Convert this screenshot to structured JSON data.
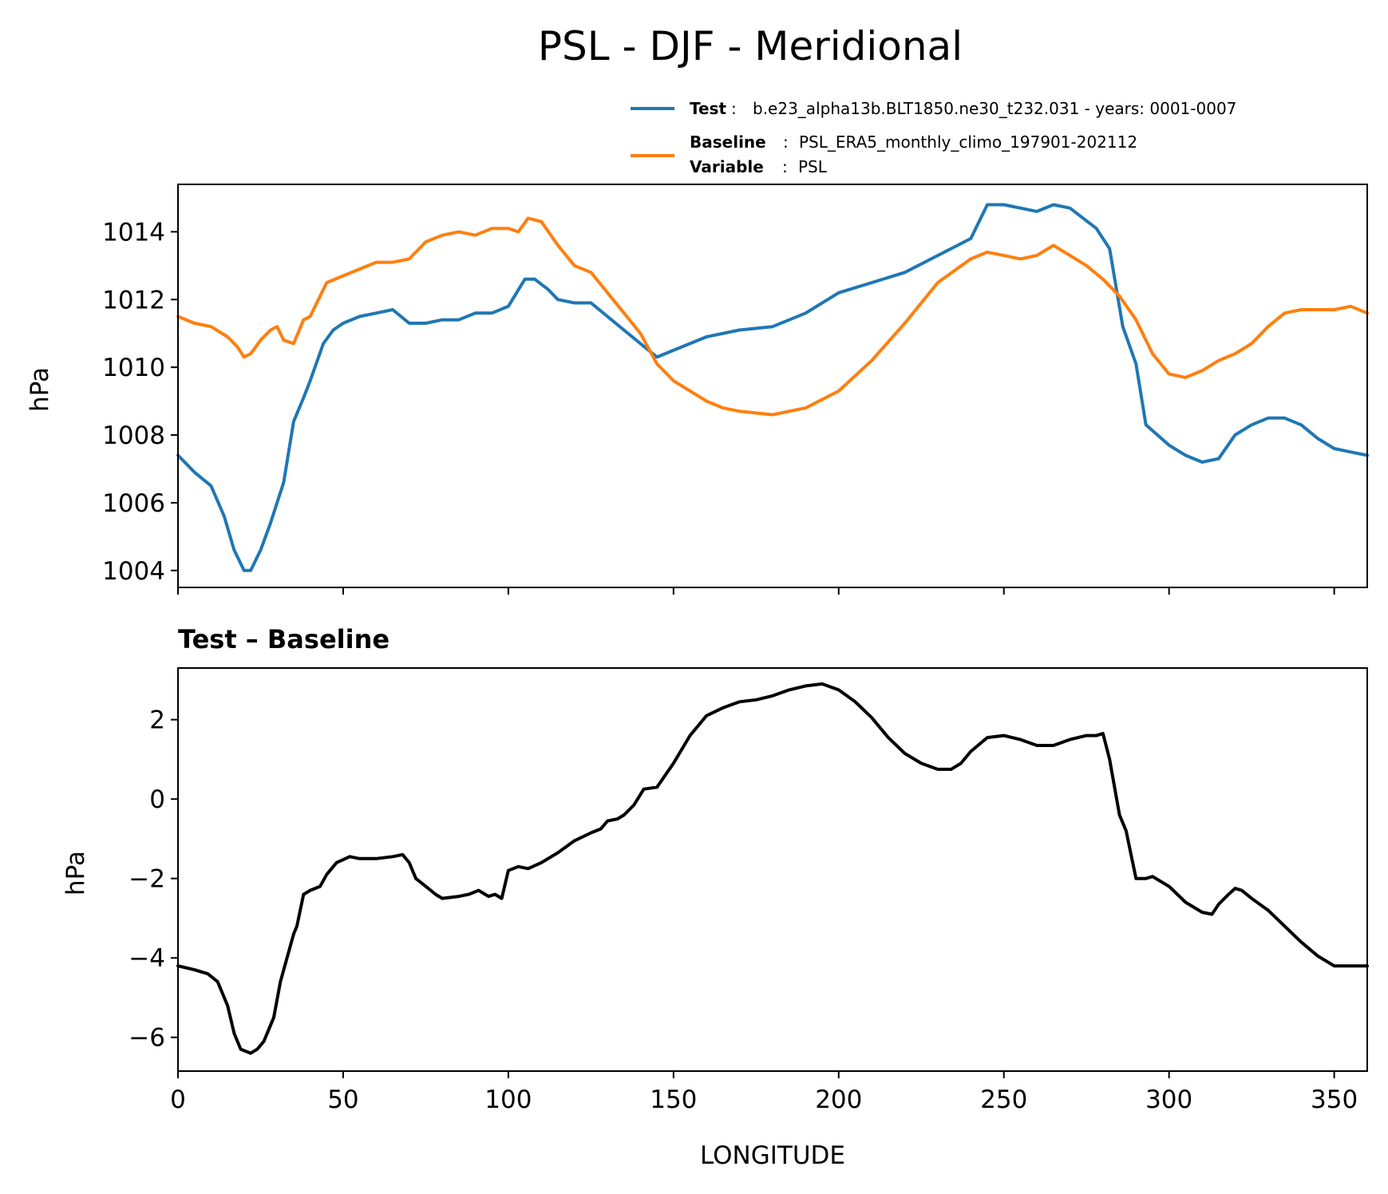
{
  "title": "PSL - DJF - Meridional",
  "legend": {
    "test_key": "Test",
    "test_value": "b.e23_alpha13b.BLT1850.ne30_t232.031 - years: 0001-0007",
    "baseline_key": "Baseline",
    "baseline_value": "PSL_ERA5_monthly_climo_197901-202112",
    "variable_key": "Variable",
    "variable_value": "PSL",
    "separator": ":"
  },
  "colors": {
    "test": "#1f77b4",
    "baseline": "#ff7f0e",
    "diff": "#000000"
  },
  "chart_data": [
    {
      "type": "line",
      "title": "PSL - DJF - Meridional",
      "ylabel": "hPa",
      "xlabel": "",
      "xlim": [
        0,
        360
      ],
      "ylim": [
        1003.5,
        1015.4
      ],
      "xticks": [
        0,
        50,
        100,
        150,
        200,
        250,
        300,
        350
      ],
      "yticks": [
        1004,
        1006,
        1008,
        1010,
        1012,
        1014
      ],
      "legend_position": "top-right, above plot",
      "series": [
        {
          "name": "Test",
          "x": [
            0,
            5,
            10,
            14,
            17,
            20,
            22,
            25,
            28,
            32,
            35,
            38,
            40,
            44,
            47,
            50,
            55,
            60,
            65,
            70,
            75,
            80,
            85,
            90,
            95,
            100,
            105,
            108,
            112,
            115,
            120,
            125,
            130,
            140,
            145,
            150,
            160,
            170,
            180,
            190,
            200,
            210,
            220,
            230,
            240,
            245,
            250,
            255,
            260,
            265,
            270,
            278,
            282,
            286,
            290,
            293,
            300,
            305,
            310,
            315,
            320,
            325,
            330,
            335,
            340,
            345,
            350,
            355,
            360
          ],
          "y": [
            1007.4,
            1006.9,
            1006.5,
            1005.6,
            1004.6,
            1004.0,
            1004.0,
            1004.6,
            1005.4,
            1006.6,
            1008.4,
            1009.1,
            1009.6,
            1010.7,
            1011.1,
            1011.3,
            1011.5,
            1011.6,
            1011.7,
            1011.3,
            1011.3,
            1011.4,
            1011.4,
            1011.6,
            1011.6,
            1011.8,
            1012.6,
            1012.6,
            1012.3,
            1012.0,
            1011.9,
            1011.9,
            1011.5,
            1010.7,
            1010.3,
            1010.5,
            1010.9,
            1011.1,
            1011.2,
            1011.6,
            1012.2,
            1012.5,
            1012.8,
            1013.3,
            1013.8,
            1014.8,
            1014.8,
            1014.7,
            1014.6,
            1014.8,
            1014.7,
            1014.1,
            1013.5,
            1011.2,
            1010.1,
            1008.3,
            1007.7,
            1007.4,
            1007.2,
            1007.3,
            1008.0,
            1008.3,
            1008.5,
            1008.5,
            1008.3,
            1007.9,
            1007.6,
            1007.5,
            1007.4
          ]
        },
        {
          "name": "Baseline",
          "x": [
            0,
            5,
            10,
            15,
            18,
            20,
            22,
            25,
            28,
            30,
            32,
            35,
            38,
            40,
            45,
            50,
            55,
            60,
            65,
            70,
            75,
            80,
            85,
            90,
            95,
            100,
            103,
            106,
            110,
            115,
            120,
            125,
            130,
            135,
            140,
            145,
            150,
            160,
            165,
            170,
            180,
            190,
            200,
            210,
            220,
            230,
            240,
            245,
            250,
            255,
            260,
            265,
            270,
            275,
            280,
            285,
            290,
            295,
            300,
            305,
            310,
            315,
            320,
            325,
            330,
            335,
            340,
            345,
            350,
            355,
            360
          ],
          "y": [
            1011.5,
            1011.3,
            1011.2,
            1010.9,
            1010.6,
            1010.3,
            1010.4,
            1010.8,
            1011.1,
            1011.2,
            1010.8,
            1010.7,
            1011.4,
            1011.5,
            1012.5,
            1012.7,
            1012.9,
            1013.1,
            1013.1,
            1013.2,
            1013.7,
            1013.9,
            1014.0,
            1013.9,
            1014.1,
            1014.1,
            1014.0,
            1014.4,
            1014.3,
            1013.6,
            1013.0,
            1012.8,
            1012.2,
            1011.6,
            1011.0,
            1010.1,
            1009.6,
            1009.0,
            1008.8,
            1008.7,
            1008.6,
            1008.8,
            1009.3,
            1010.2,
            1011.3,
            1012.5,
            1013.2,
            1013.4,
            1013.3,
            1013.2,
            1013.3,
            1013.6,
            1013.3,
            1013.0,
            1012.6,
            1012.1,
            1011.4,
            1010.4,
            1009.8,
            1009.7,
            1009.9,
            1010.2,
            1010.4,
            1010.7,
            1011.2,
            1011.6,
            1011.7,
            1011.7,
            1011.7,
            1011.8,
            1011.6
          ]
        }
      ]
    },
    {
      "type": "line",
      "title": "Test – Baseline",
      "ylabel": "hPa",
      "xlabel": "LONGITUDE",
      "xlim": [
        0,
        360
      ],
      "ylim": [
        -6.85,
        3.3
      ],
      "xticks": [
        0,
        50,
        100,
        150,
        200,
        250,
        300,
        350
      ],
      "yticks": [
        -6,
        -4,
        -2,
        0,
        2
      ],
      "series": [
        {
          "name": "Test – Baseline",
          "x": [
            0,
            5,
            9,
            12,
            15,
            17,
            19,
            22,
            24,
            26,
            29,
            31,
            33,
            35,
            36,
            38,
            40,
            43,
            45,
            48,
            52,
            55,
            60,
            65,
            68,
            70,
            72,
            75,
            78,
            80,
            85,
            88,
            91,
            94,
            96,
            98,
            100,
            103,
            106,
            110,
            115,
            120,
            125,
            128,
            130,
            133,
            135,
            138,
            141,
            145,
            150,
            155,
            160,
            165,
            170,
            175,
            180,
            185,
            190,
            195,
            200,
            205,
            210,
            215,
            220,
            225,
            230,
            234,
            237,
            240,
            245,
            250,
            255,
            260,
            265,
            270,
            275,
            278,
            280,
            282,
            285,
            287,
            288,
            290,
            293,
            295,
            297,
            300,
            305,
            310,
            313,
            315,
            318,
            320,
            322,
            325,
            330,
            335,
            340,
            345,
            350,
            355,
            360
          ],
          "y": [
            -4.2,
            -4.3,
            -4.4,
            -4.6,
            -5.2,
            -5.9,
            -6.3,
            -6.4,
            -6.3,
            -6.1,
            -5.5,
            -4.6,
            -4.0,
            -3.4,
            -3.2,
            -2.4,
            -2.3,
            -2.2,
            -1.9,
            -1.6,
            -1.45,
            -1.5,
            -1.5,
            -1.45,
            -1.4,
            -1.6,
            -2.0,
            -2.2,
            -2.4,
            -2.5,
            -2.45,
            -2.4,
            -2.3,
            -2.45,
            -2.4,
            -2.5,
            -1.8,
            -1.7,
            -1.75,
            -1.6,
            -1.35,
            -1.05,
            -0.85,
            -0.75,
            -0.55,
            -0.5,
            -0.4,
            -0.15,
            0.25,
            0.3,
            0.9,
            1.6,
            2.1,
            2.3,
            2.45,
            2.5,
            2.6,
            2.75,
            2.85,
            2.9,
            2.75,
            2.45,
            2.05,
            1.55,
            1.15,
            0.9,
            0.75,
            0.75,
            0.9,
            1.2,
            1.55,
            1.6,
            1.5,
            1.35,
            1.35,
            1.5,
            1.6,
            1.6,
            1.65,
            1.0,
            -0.4,
            -0.8,
            -1.2,
            -2.0,
            -2.0,
            -1.95,
            -2.05,
            -2.2,
            -2.6,
            -2.85,
            -2.9,
            -2.65,
            -2.4,
            -2.25,
            -2.3,
            -2.5,
            -2.8,
            -3.2,
            -3.6,
            -3.95,
            -4.2,
            -4.2,
            -4.2
          ]
        }
      ]
    }
  ]
}
